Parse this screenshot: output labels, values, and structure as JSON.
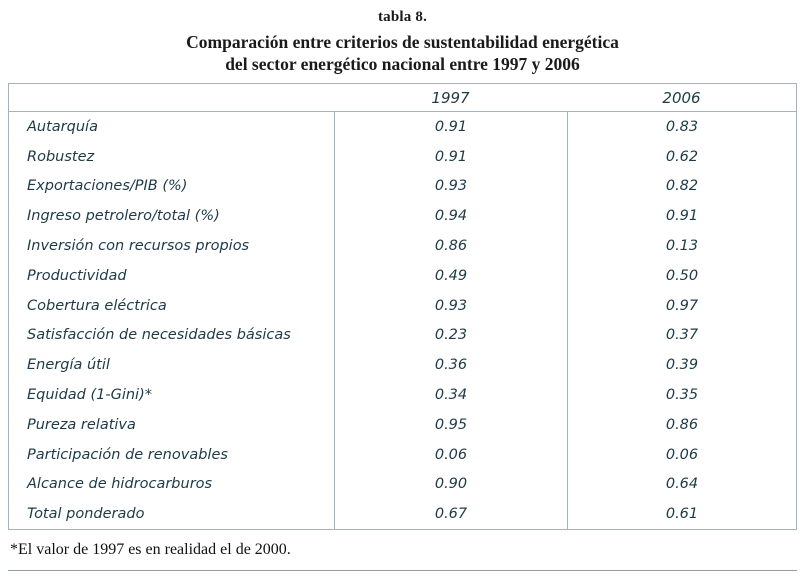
{
  "title": {
    "line1": "tabla 8.",
    "line2": "Comparación entre criterios de sustentabilidad energética",
    "line3": "del sector energético nacional entre 1997 y 2006"
  },
  "table": {
    "columns": [
      "",
      "1997",
      "2006"
    ],
    "rows": [
      {
        "label": "Autarquía",
        "v1997": "0.91",
        "v2006": "0.83"
      },
      {
        "label": "Robustez",
        "v1997": "0.91",
        "v2006": "0.62"
      },
      {
        "label": "Exportaciones/PIB (%)",
        "v1997": "0.93",
        "v2006": "0.82"
      },
      {
        "label": "Ingreso petrolero/total (%)",
        "v1997": "0.94",
        "v2006": "0.91"
      },
      {
        "label": "Inversión con recursos propios",
        "v1997": "0.86",
        "v2006": "0.13"
      },
      {
        "label": "Productividad",
        "v1997": "0.49",
        "v2006": "0.50"
      },
      {
        "label": "Cobertura eléctrica",
        "v1997": "0.93",
        "v2006": "0.97"
      },
      {
        "label": "Satisfacción de necesidades básicas",
        "v1997": "0.23",
        "v2006": "0.37"
      },
      {
        "label": "Energía útil",
        "v1997": "0.36",
        "v2006": "0.39"
      },
      {
        "label": "Equidad (1-Gini)*",
        "v1997": "0.34",
        "v2006": "0.35"
      },
      {
        "label": "Pureza relativa",
        "v1997": "0.95",
        "v2006": "0.86"
      },
      {
        "label": "Participación de renovables",
        "v1997": "0.06",
        "v2006": "0.06"
      },
      {
        "label": "Alcance de hidrocarburos",
        "v1997": "0.90",
        "v2006": "0.64"
      },
      {
        "label": "Total ponderado",
        "v1997": "0.67",
        "v2006": "0.61"
      }
    ]
  },
  "footnote": "*El valor de 1997 es en realidad el de 2000.",
  "chart_data": {
    "type": "table",
    "title": "tabla 8. Comparación entre criterios de sustentabilidad energética del sector energético nacional entre 1997 y 2006",
    "categories": [
      "Autarquía",
      "Robustez",
      "Exportaciones/PIB (%)",
      "Ingreso petrolero/total (%)",
      "Inversión con recursos propios",
      "Productividad",
      "Cobertura eléctrica",
      "Satisfacción de necesidades básicas",
      "Energía útil",
      "Equidad (1-Gini)*",
      "Pureza relativa",
      "Participación de renovables",
      "Alcance de hidrocarburos",
      "Total ponderado"
    ],
    "series": [
      {
        "name": "1997",
        "values": [
          0.91,
          0.91,
          0.93,
          0.94,
          0.86,
          0.49,
          0.93,
          0.23,
          0.36,
          0.34,
          0.95,
          0.06,
          0.9,
          0.67
        ]
      },
      {
        "name": "2006",
        "values": [
          0.83,
          0.62,
          0.82,
          0.91,
          0.13,
          0.5,
          0.97,
          0.37,
          0.39,
          0.35,
          0.86,
          0.06,
          0.64,
          0.61
        ]
      }
    ],
    "footnote": "*El valor de 1997 es en realidad el de 2000."
  }
}
